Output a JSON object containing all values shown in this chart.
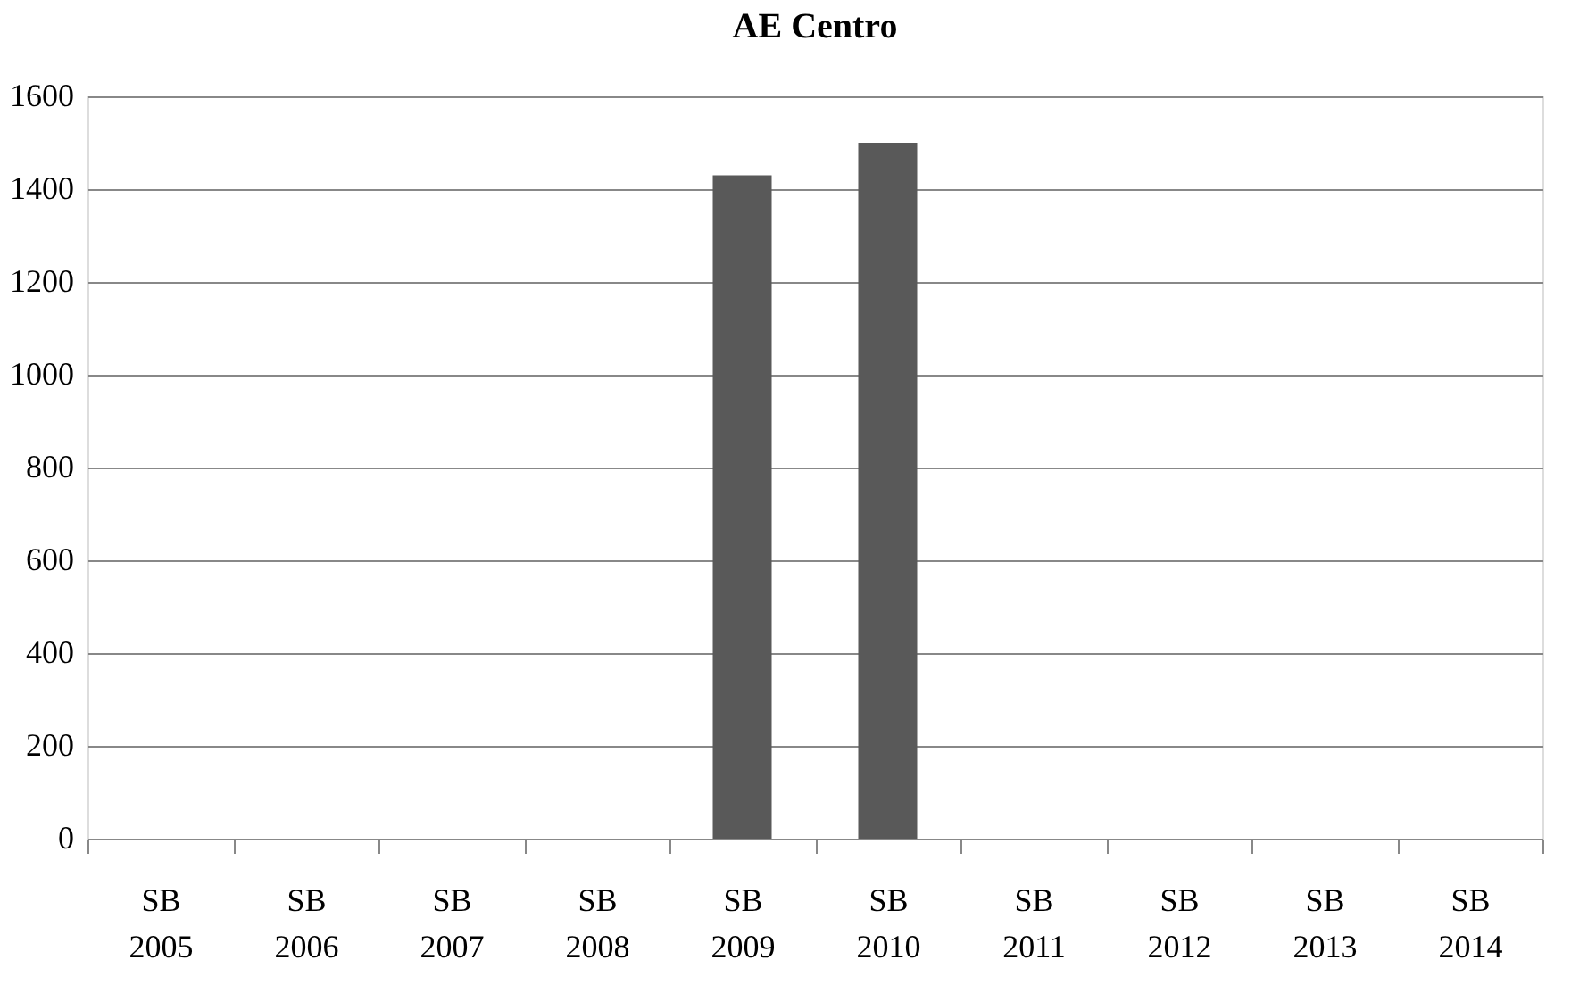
{
  "chart_data": {
    "type": "bar",
    "title": "AE Centro",
    "categories": [
      "SB 2005",
      "SB 2006",
      "SB 2007",
      "SB 2008",
      "SB 2009",
      "SB 2010",
      "SB 2011",
      "SB 2012",
      "SB 2013",
      "SB 2014"
    ],
    "values": [
      null,
      null,
      null,
      null,
      1430,
      1500,
      null,
      null,
      null,
      null
    ],
    "color": "#595959",
    "ylim": [
      0,
      1600
    ],
    "yticks": [
      0,
      200,
      400,
      600,
      800,
      1000,
      1200,
      1400,
      1600
    ],
    "grid": "y"
  }
}
